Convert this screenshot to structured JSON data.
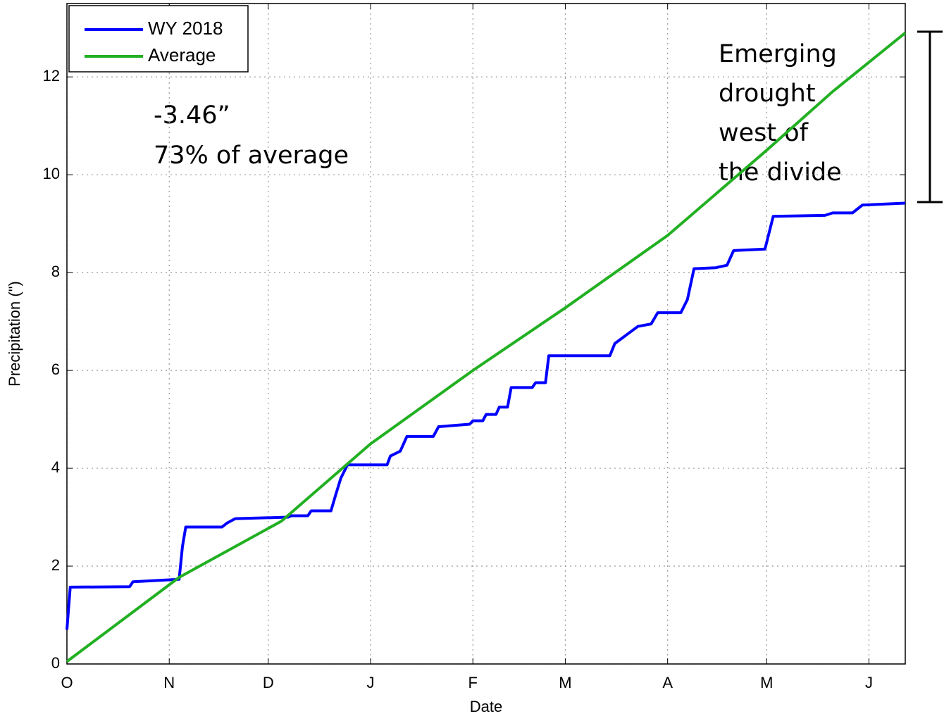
{
  "chart_data": {
    "type": "line",
    "xlabel": "Date",
    "ylabel": "Precipitation (\")",
    "xlim": [
      0,
      254
    ],
    "ylim": [
      0,
      13.5
    ],
    "xticks": [
      {
        "value": 0,
        "label": "O"
      },
      {
        "value": 31,
        "label": "N"
      },
      {
        "value": 61,
        "label": "D"
      },
      {
        "value": 92,
        "label": "J"
      },
      {
        "value": 123,
        "label": "F"
      },
      {
        "value": 151,
        "label": "M"
      },
      {
        "value": 182,
        "label": "A"
      },
      {
        "value": 212,
        "label": "M"
      },
      {
        "value": 243,
        "label": "J"
      }
    ],
    "yticks": [
      0,
      2,
      4,
      6,
      8,
      10,
      12
    ],
    "grid": true,
    "legend": "upper left",
    "series": [
      {
        "name": "WY 2018",
        "color": "#0000ff",
        "x": [
          0,
          1,
          19,
          20,
          34,
          35,
          36,
          47,
          48.5,
          51,
          67,
          68,
          73,
          74,
          80,
          81.4,
          83,
          85,
          97,
          98,
          101,
          103,
          111,
          112.6,
          122,
          123,
          126,
          127,
          130,
          131,
          133.5,
          134.6,
          141,
          142,
          145,
          146,
          164.5,
          166,
          169,
          173,
          177,
          179,
          186,
          188,
          190,
          196.6,
          200,
          202,
          211.5,
          214,
          229.7,
          232,
          238,
          241,
          254
        ],
        "values": [
          0.7,
          1.57,
          1.58,
          1.68,
          1.73,
          2.4,
          2.8,
          2.8,
          2.88,
          2.97,
          3.0,
          3.03,
          3.03,
          3.13,
          3.13,
          3.45,
          3.8,
          4.07,
          4.07,
          4.25,
          4.35,
          4.65,
          4.65,
          4.85,
          4.9,
          4.97,
          4.97,
          5.1,
          5.1,
          5.25,
          5.25,
          5.65,
          5.65,
          5.75,
          5.75,
          6.3,
          6.3,
          6.55,
          6.7,
          6.9,
          6.95,
          7.18,
          7.18,
          7.45,
          8.08,
          8.1,
          8.15,
          8.45,
          8.48,
          9.15,
          9.17,
          9.22,
          9.22,
          9.38,
          9.42
        ]
      },
      {
        "name": "Average",
        "color": "#22b022",
        "x": [
          0,
          34,
          65,
          92,
          123,
          151,
          182,
          212,
          232,
          254
        ],
        "values": [
          0.05,
          1.77,
          2.92,
          4.5,
          6.0,
          7.28,
          8.76,
          10.5,
          11.7,
          12.9
        ]
      }
    ],
    "annotations": [
      "-3.46”",
      "73% of average"
    ],
    "side_note": [
      "Emerging",
      "drought",
      "west of",
      "the divide"
    ]
  }
}
